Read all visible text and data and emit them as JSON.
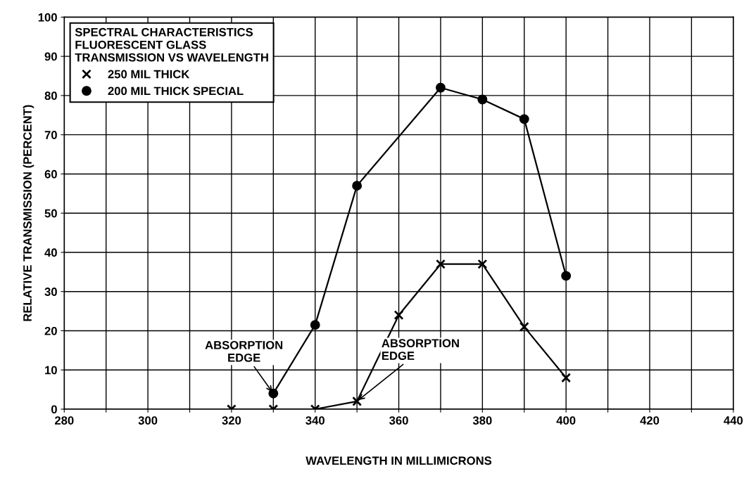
{
  "chart_data": {
    "type": "line",
    "xlabel": "WAVELENGTH IN MILLIMICRONS",
    "ylabel": "RELATIVE TRANSMISSION (PERCENT)",
    "legend_title": "SPECTRAL CHARACTERISTICS\nFLUORESCENT GLASS\nTRANSMISSION VS WAVELENGTH",
    "legend": "top left",
    "grid": true,
    "xlim": [
      280,
      440
    ],
    "xticks": [
      280,
      {
        "value": 290,
        "label": null
      },
      300,
      {
        "value": 310,
        "label": null
      },
      320,
      {
        "value": 330,
        "label": null
      },
      340,
      {
        "value": 350,
        "label": null
      },
      360,
      {
        "value": 370,
        "label": null
      },
      380,
      {
        "value": 390,
        "label": null
      },
      400,
      {
        "value": 410,
        "label": null
      },
      420,
      {
        "value": 430,
        "label": null
      },
      440
    ],
    "ylim": [
      0,
      100
    ],
    "yticks": [
      0,
      10,
      20,
      30,
      40,
      50,
      60,
      70,
      80,
      90,
      100
    ],
    "series": [
      {
        "name": "250 MIL THICK",
        "color": "#000000",
        "marker": "cross",
        "x": [
          320,
          330,
          340,
          350,
          360,
          370,
          380,
          390,
          400
        ],
        "values": [
          0,
          0,
          0,
          2,
          24,
          37,
          37,
          21,
          8
        ]
      },
      {
        "name": "200 MIL THICK SPECIAL",
        "color": "#000000",
        "marker": "circle",
        "x": [
          330,
          340,
          350,
          370,
          380,
          390,
          400
        ],
        "values": [
          4,
          21.5,
          57,
          82,
          79,
          74,
          34
        ]
      }
    ],
    "annotations": [
      {
        "text": "ABSORPTION\nEDGE",
        "x": 330,
        "y": 4
      },
      {
        "text": "ABSORPTION\nEDGE",
        "x": 350,
        "y": 2
      }
    ]
  }
}
